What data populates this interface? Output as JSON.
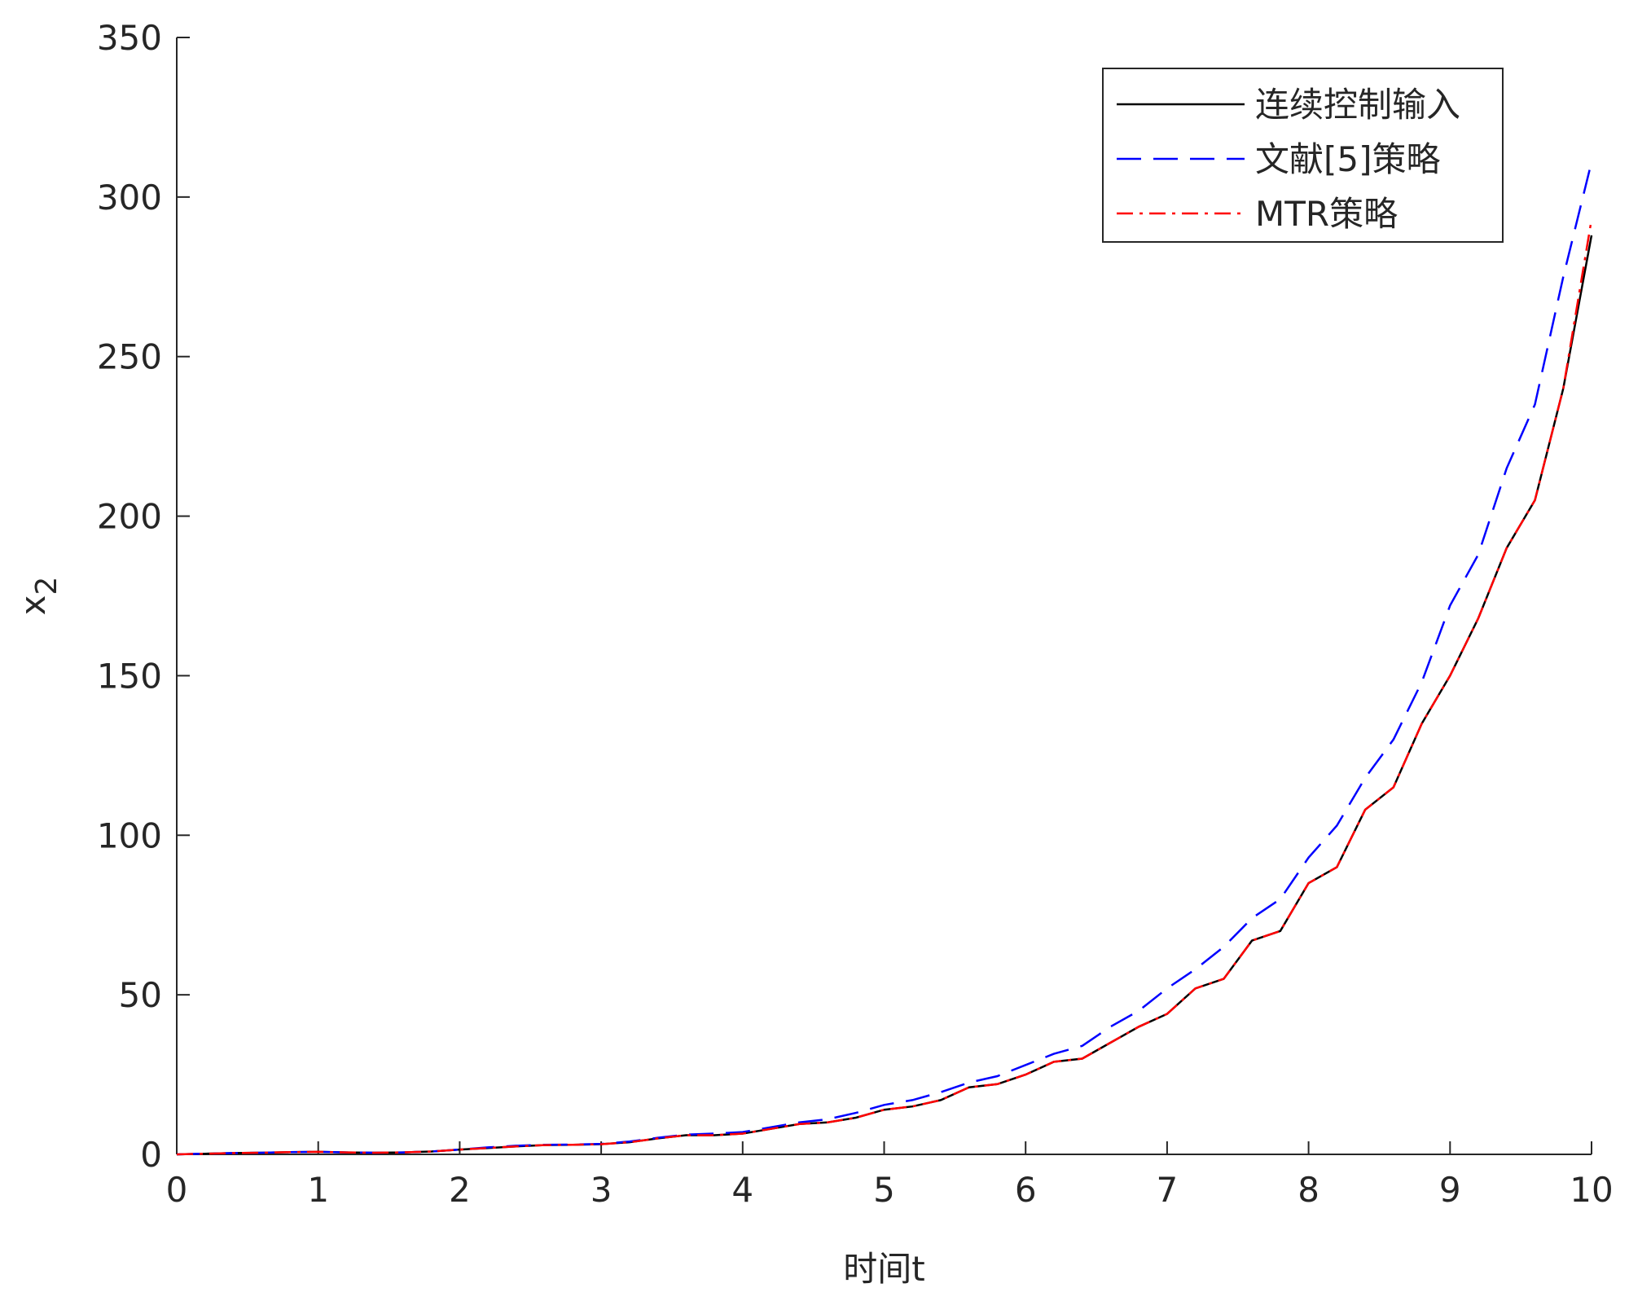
{
  "chart_data": {
    "type": "line",
    "xlabel": "时间t",
    "ylabel": "x",
    "ylabel_sub": "2",
    "x": [
      0,
      0.2,
      0.4,
      0.6,
      0.8,
      1,
      1.2,
      1.4,
      1.6,
      1.8,
      2,
      2.2,
      2.4,
      2.6,
      2.8,
      3,
      3.2,
      3.4,
      3.6,
      3.8,
      4,
      4.2,
      4.4,
      4.6,
      4.8,
      5,
      5.2,
      5.4,
      5.6,
      5.8,
      6,
      6.2,
      6.4,
      6.6,
      6.8,
      7,
      7.2,
      7.4,
      7.6,
      7.8,
      8,
      8.2,
      8.4,
      8.6,
      8.8,
      9,
      9.2,
      9.4,
      9.6,
      9.8,
      10
    ],
    "series": [
      {
        "name": "连续控制输入",
        "color": "#000000",
        "dash": "none",
        "values": [
          0,
          0.2,
          0.4,
          0.5,
          0.7,
          0.8,
          0.6,
          0.5,
          0.6,
          0.9,
          1.5,
          2,
          2.5,
          2.9,
          3,
          3.2,
          3.8,
          5,
          6,
          6,
          6.5,
          8,
          9.5,
          10,
          11.5,
          14,
          15,
          17,
          21,
          22,
          25,
          29,
          30,
          35,
          40,
          44,
          52,
          55,
          67,
          70,
          85,
          90,
          108,
          115,
          135,
          150,
          168,
          190,
          205,
          240,
          288
        ]
      },
      {
        "name": "文献[5]策略",
        "color": "#0000ff",
        "dash": "30 15",
        "values": [
          0,
          0.2,
          0.4,
          0.5,
          0.7,
          0.8,
          0.6,
          0.5,
          0.6,
          0.9,
          1.5,
          2.2,
          2.7,
          3,
          3.1,
          3.3,
          4,
          5.2,
          6.2,
          6.5,
          7,
          8.5,
          10,
          11,
          13,
          15.5,
          17,
          19.5,
          22.5,
          24.5,
          28,
          31.5,
          34,
          40,
          45,
          52,
          58,
          65,
          74,
          80,
          93,
          103,
          118,
          130,
          148,
          172,
          188,
          215,
          235,
          275,
          311
        ]
      },
      {
        "name": "MTR策略",
        "color": "#ff0000",
        "dash": "20 8 4 8",
        "values": [
          0,
          0.2,
          0.4,
          0.5,
          0.7,
          0.8,
          0.6,
          0.5,
          0.6,
          0.9,
          1.5,
          2,
          2.5,
          2.9,
          3,
          3.2,
          3.8,
          5,
          6,
          6,
          6.5,
          8,
          9.5,
          10,
          11.5,
          14,
          15,
          17,
          21,
          22,
          25,
          29,
          30,
          35,
          40,
          44,
          52,
          55,
          67,
          70,
          85,
          90,
          108,
          115,
          135,
          150,
          168,
          190,
          205,
          240,
          293
        ]
      }
    ],
    "xlim": [
      0,
      10
    ],
    "xticks": [
      0,
      1,
      2,
      3,
      4,
      5,
      6,
      7,
      8,
      9,
      10
    ],
    "ylim": [
      0,
      350
    ],
    "yticks": [
      0,
      50,
      100,
      150,
      200,
      250,
      300,
      350
    ],
    "legend": "top-right",
    "grid": false
  }
}
